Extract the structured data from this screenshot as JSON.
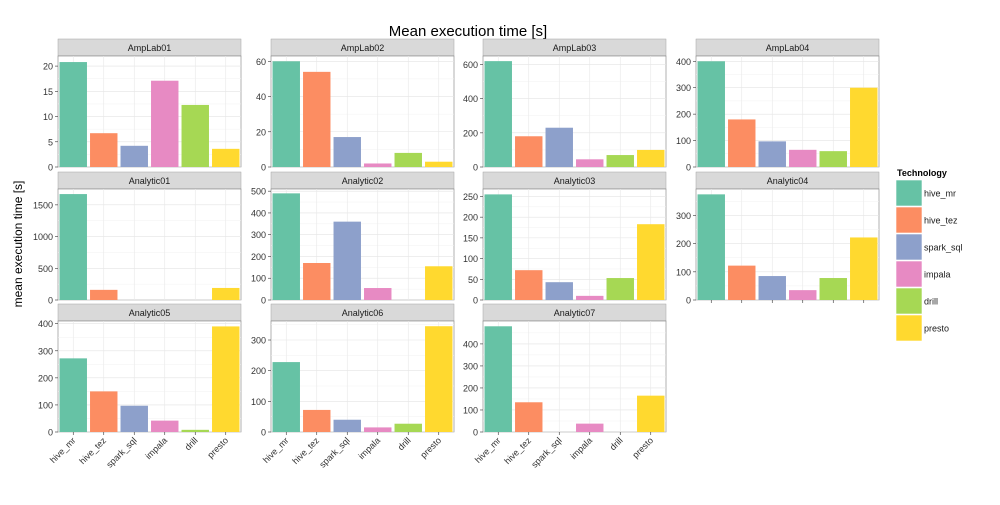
{
  "chart_data": {
    "type": "bar",
    "title": "Mean execution time [s]",
    "ylabel": "mean execution time [s]",
    "xlabel": "",
    "categories": [
      "hive_mr",
      "hive_tez",
      "spark_sql",
      "impala",
      "drill",
      "presto"
    ],
    "legend": {
      "title": "Technology",
      "placement": "right",
      "entries": [
        "hive_mr",
        "hive_tez",
        "spark_sql",
        "impala",
        "drill",
        "presto"
      ]
    },
    "colors": {
      "hive_mr": "#66C2A5",
      "hive_tez": "#FC8D62",
      "spark_sql": "#8DA0CB",
      "impala": "#E78AC3",
      "drill": "#A6D854",
      "presto": "#FFD92F"
    },
    "grid": true,
    "panels": [
      {
        "name": "AmpLab01",
        "values": [
          20.8,
          6.7,
          4.2,
          17.1,
          12.3,
          3.6
        ],
        "ylim": [
          0,
          22
        ],
        "ticks": [
          0,
          5,
          10,
          15,
          20
        ]
      },
      {
        "name": "AmpLab02",
        "values": [
          60,
          54,
          17,
          2,
          8,
          3
        ],
        "ylim": [
          0,
          63
        ],
        "ticks": [
          0,
          20,
          40,
          60
        ]
      },
      {
        "name": "AmpLab03",
        "values": [
          620,
          180,
          230,
          45,
          70,
          100
        ],
        "ylim": [
          0,
          650
        ],
        "ticks": [
          0,
          200,
          400,
          600
        ]
      },
      {
        "name": "AmpLab04",
        "values": [
          400,
          180,
          97,
          65,
          60,
          300
        ],
        "ylim": [
          0,
          420
        ],
        "ticks": [
          0,
          100,
          200,
          300,
          400
        ]
      },
      {
        "name": "Analytic01",
        "values": [
          1670,
          160,
          null,
          null,
          null,
          190
        ],
        "ylim": [
          0,
          1750
        ],
        "ticks": [
          0,
          500,
          1000,
          1500
        ]
      },
      {
        "name": "Analytic02",
        "values": [
          490,
          170,
          360,
          55,
          null,
          155
        ],
        "ylim": [
          0,
          510
        ],
        "ticks": [
          0,
          100,
          200,
          300,
          400,
          500
        ]
      },
      {
        "name": "Analytic03",
        "values": [
          255,
          72,
          43,
          10,
          53,
          183
        ],
        "ylim": [
          0,
          268
        ],
        "ticks": [
          0,
          50,
          100,
          150,
          200,
          250
        ]
      },
      {
        "name": "Analytic04",
        "values": [
          375,
          122,
          85,
          35,
          78,
          222
        ],
        "ylim": [
          0,
          394
        ],
        "ticks": [
          0,
          100,
          200,
          300
        ]
      },
      {
        "name": "Analytic05",
        "values": [
          272,
          150,
          97,
          42,
          8,
          390
        ],
        "ylim": [
          0,
          410
        ],
        "ticks": [
          0,
          100,
          200,
          300,
          400
        ]
      },
      {
        "name": "Analytic06",
        "values": [
          228,
          72,
          40,
          15,
          27,
          345
        ],
        "ylim": [
          0,
          362
        ],
        "ticks": [
          0,
          100,
          200,
          300
        ]
      },
      {
        "name": "Analytic07",
        "values": [
          480,
          135,
          null,
          38,
          null,
          165
        ],
        "ylim": [
          0,
          504
        ],
        "ticks": [
          0,
          100,
          200,
          300,
          400
        ]
      }
    ]
  }
}
